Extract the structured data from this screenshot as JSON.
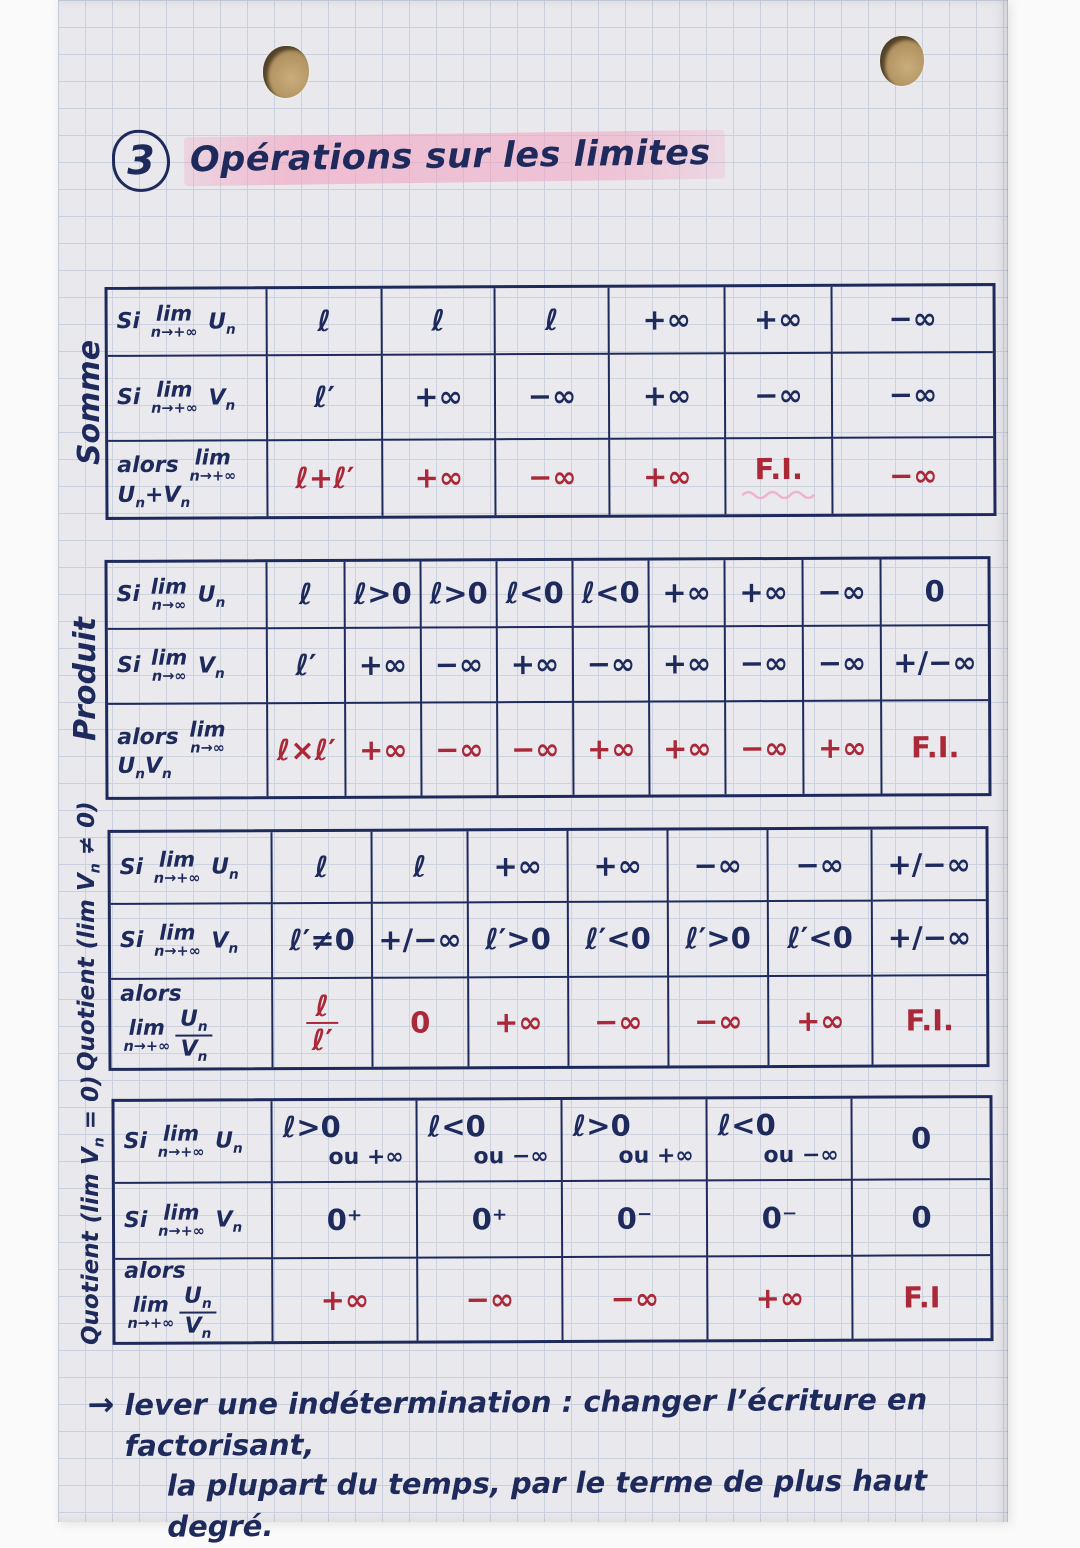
{
  "title": {
    "number": "3",
    "text": "Opérations sur les limites"
  },
  "colors": {
    "ink": "#1e2a5c",
    "result_red": "#ab2838",
    "highlight_pink": "#f2a5c2",
    "paper": "#e9e9ed",
    "grid": "#c9cfdc",
    "hole_tan": "#b29361"
  },
  "tables": [
    {
      "id": "somme",
      "label": "Somme",
      "rows": [
        {
          "label": {
            "intro": "Si",
            "sub": "n→+∞",
            "expr": "U_n"
          },
          "cells": [
            "ℓ",
            "ℓ",
            "ℓ",
            "+∞",
            "+∞",
            "−∞"
          ]
        },
        {
          "label": {
            "intro": "Si",
            "sub": "n→+∞",
            "expr": "V_n"
          },
          "cells": [
            "ℓ′",
            "+∞",
            "−∞",
            "+∞",
            "−∞",
            "−∞"
          ]
        },
        {
          "label": {
            "intro": "alors",
            "sub": "n→+∞",
            "expr": "U_n+V_n"
          },
          "cells": [
            "ℓ+ℓ′",
            "+∞",
            "−∞",
            "+∞",
            {
              "t": "F.I.",
              "scribble": true
            },
            "−∞"
          ]
        }
      ]
    },
    {
      "id": "produit",
      "label": "Produit",
      "rows": [
        {
          "label": {
            "intro": "Si",
            "sub": "n→∞",
            "expr": "U_n"
          },
          "cells": [
            "ℓ",
            "ℓ>0",
            "ℓ>0",
            "ℓ<0",
            "ℓ<0",
            "+∞",
            "+∞",
            "−∞",
            "0"
          ]
        },
        {
          "label": {
            "intro": "Si",
            "sub": "n→∞",
            "expr": "V_n"
          },
          "cells": [
            "ℓ′",
            "+∞",
            "−∞",
            "+∞",
            "−∞",
            "+∞",
            "−∞",
            "−∞",
            "+/−∞"
          ]
        },
        {
          "label": {
            "intro": "alors",
            "sub": "n→∞",
            "expr": "U_nV_n"
          },
          "cells": [
            "ℓ×ℓ′",
            "+∞",
            "−∞",
            "−∞",
            "+∞",
            "+∞",
            "−∞",
            "+∞",
            "F.I."
          ]
        }
      ]
    },
    {
      "id": "quotient-vn-non-nul",
      "label": "Quotient (lim V_n ≠ 0)",
      "rows": [
        {
          "label": {
            "intro": "Si",
            "sub": "n→+∞",
            "expr": "U_n"
          },
          "cells": [
            "ℓ",
            "ℓ",
            "+∞",
            "+∞",
            "−∞",
            "−∞",
            "+/−∞"
          ]
        },
        {
          "label": {
            "intro": "Si",
            "sub": "n→+∞",
            "expr": "V_n"
          },
          "cells": [
            "ℓ′≠0",
            "+/−∞",
            "ℓ′>0",
            "ℓ′<0",
            "ℓ′>0",
            "ℓ′<0",
            "+/−∞"
          ]
        },
        {
          "label": {
            "intro": "alors",
            "sub": "n→+∞",
            "frac": [
              "U_n",
              "V_n"
            ]
          },
          "cells": [
            {
              "frac": [
                "ℓ",
                "ℓ′"
              ]
            },
            "0",
            "+∞",
            "−∞",
            "−∞",
            "+∞",
            "F.I."
          ]
        }
      ]
    },
    {
      "id": "quotient-vn-nul",
      "label": "Quotient (lim V_n = 0)",
      "rows": [
        {
          "label": {
            "intro": "Si",
            "sub": "n→+∞",
            "expr": "U_n"
          },
          "cells": [
            {
              "t": "ℓ>0",
              "t2": "ou +∞"
            },
            {
              "t": "ℓ<0",
              "t2": "ou −∞"
            },
            {
              "t": "ℓ>0",
              "t2": "ou +∞"
            },
            {
              "t": "ℓ<0",
              "t2": "ou −∞"
            },
            "0"
          ]
        },
        {
          "label": {
            "intro": "Si",
            "sub": "n→+∞",
            "expr": "V_n"
          },
          "cells": [
            "0⁺",
            "0⁺",
            "0⁻",
            "0⁻",
            "0"
          ]
        },
        {
          "label": {
            "intro": "alors",
            "sub": "n→+∞",
            "frac": [
              "U_n",
              "V_n"
            ]
          },
          "cells": [
            "+∞",
            "−∞",
            "−∞",
            "+∞",
            "F.I"
          ]
        }
      ]
    }
  ],
  "footnote": {
    "arrow": "→",
    "line1": "lever une indétermination : changer l’écriture en factorisant,",
    "line2": "la plupart du temps, par le terme de plus haut degré."
  }
}
